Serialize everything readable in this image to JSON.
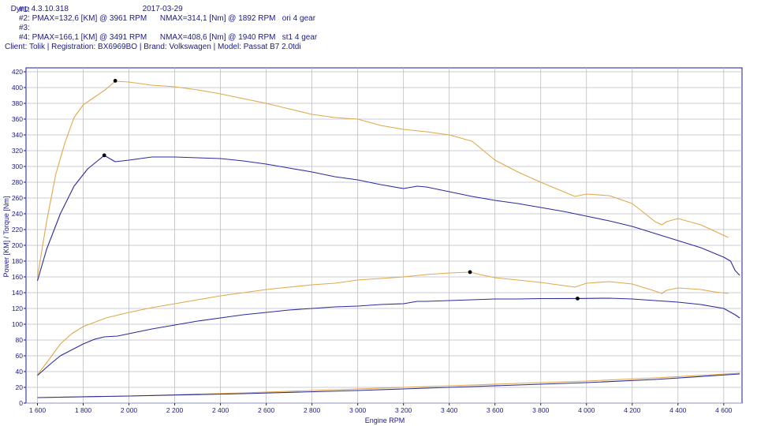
{
  "header": {
    "line0_left": "Dyno 4.3.10.318",
    "line0_right": "2017-03-29",
    "run1": "#1:",
    "run2": "#2: PMAX=132,6 [KM] @ 3961 RPM      NMAX=314,1 [Nm] @ 1892 RPM   ori 4 gear",
    "run3": "#3:",
    "run4": "#4: PMAX=166,1 [KM] @ 3491 RPM      NMAX=408,6 [Nm] @ 1940 RPM   st1 4 gear",
    "client": "Client: Tolik | Registration: BX6969BO | Brand: Volkswagen | Model: Passat B7 2.0tdi"
  },
  "chart_data": {
    "type": "line",
    "xlabel": "Engine RPM",
    "ylabel": "Power [KM] / Torque [Nm]",
    "xlim": [
      1550,
      4680
    ],
    "ylim": [
      0,
      425
    ],
    "xticks": [
      1600,
      1800,
      2000,
      2200,
      2400,
      2600,
      2800,
      3000,
      3200,
      3400,
      3600,
      3800,
      4000,
      4200,
      4400,
      4600
    ],
    "xtick_labels": [
      "1 600",
      "1 800",
      "2 000",
      "2 200",
      "2 400",
      "2 600",
      "2 800",
      "3 000",
      "3 200",
      "3 400",
      "3 600",
      "3 800",
      "4 000",
      "4 200",
      "4 400",
      "4 600"
    ],
    "yticks": [
      0,
      20,
      40,
      60,
      80,
      100,
      120,
      140,
      160,
      180,
      200,
      220,
      240,
      260,
      280,
      300,
      320,
      340,
      360,
      380,
      400,
      420
    ],
    "grid": true,
    "colors": {
      "ori": "#2a2a9e",
      "st1": "#e0a84a",
      "marker": "#000000"
    },
    "series": [
      {
        "color_key": "st1",
        "values": [
          [
            1600,
            160
          ],
          [
            1640,
            230
          ],
          [
            1680,
            290
          ],
          [
            1720,
            330
          ],
          [
            1760,
            362
          ],
          [
            1800,
            378
          ],
          [
            1850,
            388
          ],
          [
            1900,
            398
          ],
          [
            1940,
            408
          ],
          [
            2000,
            407
          ],
          [
            2100,
            403
          ],
          [
            2200,
            401
          ],
          [
            2300,
            397
          ],
          [
            2400,
            392
          ],
          [
            2500,
            386
          ],
          [
            2600,
            380
          ],
          [
            2700,
            373
          ],
          [
            2800,
            366
          ],
          [
            2900,
            362
          ],
          [
            3000,
            360
          ],
          [
            3100,
            352
          ],
          [
            3200,
            347
          ],
          [
            3300,
            344
          ],
          [
            3400,
            340
          ],
          [
            3500,
            332
          ],
          [
            3550,
            320
          ],
          [
            3600,
            308
          ],
          [
            3700,
            293
          ],
          [
            3800,
            280
          ],
          [
            3900,
            268
          ],
          [
            3950,
            262
          ],
          [
            4000,
            265
          ],
          [
            4100,
            263
          ],
          [
            4200,
            253
          ],
          [
            4300,
            230
          ],
          [
            4330,
            226
          ],
          [
            4350,
            230
          ],
          [
            4400,
            234
          ],
          [
            4500,
            226
          ],
          [
            4560,
            218
          ],
          [
            4620,
            210
          ]
        ]
      },
      {
        "color_key": "ori",
        "values": [
          [
            1600,
            155
          ],
          [
            1640,
            195
          ],
          [
            1700,
            240
          ],
          [
            1760,
            275
          ],
          [
            1820,
            297
          ],
          [
            1892,
            314
          ],
          [
            1940,
            306
          ],
          [
            2000,
            308
          ],
          [
            2100,
            312
          ],
          [
            2200,
            312
          ],
          [
            2300,
            311
          ],
          [
            2400,
            310
          ],
          [
            2500,
            307
          ],
          [
            2600,
            303
          ],
          [
            2700,
            298
          ],
          [
            2800,
            293
          ],
          [
            2900,
            287
          ],
          [
            3000,
            283
          ],
          [
            3100,
            277
          ],
          [
            3200,
            272
          ],
          [
            3260,
            275
          ],
          [
            3300,
            274
          ],
          [
            3400,
            268
          ],
          [
            3500,
            262
          ],
          [
            3600,
            257
          ],
          [
            3700,
            253
          ],
          [
            3800,
            248
          ],
          [
            3900,
            243
          ],
          [
            4000,
            237
          ],
          [
            4100,
            231
          ],
          [
            4200,
            224
          ],
          [
            4300,
            215
          ],
          [
            4400,
            206
          ],
          [
            4500,
            197
          ],
          [
            4600,
            185
          ],
          [
            4630,
            180
          ],
          [
            4650,
            168
          ],
          [
            4670,
            162
          ]
        ]
      },
      {
        "color_key": "st1",
        "values": [
          [
            1600,
            36
          ],
          [
            1650,
            55
          ],
          [
            1700,
            75
          ],
          [
            1750,
            88
          ],
          [
            1800,
            97
          ],
          [
            1900,
            108
          ],
          [
            2000,
            115
          ],
          [
            2100,
            121
          ],
          [
            2200,
            126
          ],
          [
            2300,
            131
          ],
          [
            2400,
            136
          ],
          [
            2500,
            140
          ],
          [
            2600,
            144
          ],
          [
            2700,
            147
          ],
          [
            2800,
            150
          ],
          [
            2900,
            152
          ],
          [
            3000,
            156
          ],
          [
            3100,
            158
          ],
          [
            3200,
            160
          ],
          [
            3300,
            163
          ],
          [
            3400,
            165
          ],
          [
            3491,
            166
          ],
          [
            3550,
            162
          ],
          [
            3600,
            159
          ],
          [
            3700,
            156
          ],
          [
            3800,
            153
          ],
          [
            3900,
            149
          ],
          [
            3950,
            147
          ],
          [
            4000,
            152
          ],
          [
            4100,
            154
          ],
          [
            4200,
            151
          ],
          [
            4300,
            142
          ],
          [
            4330,
            139
          ],
          [
            4350,
            143
          ],
          [
            4400,
            146
          ],
          [
            4500,
            144
          ],
          [
            4560,
            141
          ],
          [
            4620,
            139
          ]
        ]
      },
      {
        "color_key": "ori",
        "values": [
          [
            1600,
            35
          ],
          [
            1650,
            48
          ],
          [
            1700,
            60
          ],
          [
            1800,
            75
          ],
          [
            1850,
            81
          ],
          [
            1892,
            84
          ],
          [
            1950,
            85
          ],
          [
            2000,
            88
          ],
          [
            2100,
            94
          ],
          [
            2200,
            99
          ],
          [
            2300,
            104
          ],
          [
            2400,
            108
          ],
          [
            2500,
            112
          ],
          [
            2600,
            115
          ],
          [
            2700,
            118
          ],
          [
            2800,
            120
          ],
          [
            2900,
            122
          ],
          [
            3000,
            123
          ],
          [
            3100,
            125
          ],
          [
            3200,
            126
          ],
          [
            3260,
            129
          ],
          [
            3300,
            129
          ],
          [
            3400,
            130
          ],
          [
            3500,
            131
          ],
          [
            3600,
            132
          ],
          [
            3700,
            132
          ],
          [
            3800,
            132.5
          ],
          [
            3961,
            132.6
          ],
          [
            4100,
            133
          ],
          [
            4200,
            132
          ],
          [
            4300,
            130
          ],
          [
            4400,
            128
          ],
          [
            4500,
            125
          ],
          [
            4600,
            120
          ],
          [
            4650,
            112
          ],
          [
            4670,
            108
          ]
        ]
      },
      {
        "color_key": "st1",
        "values": [
          [
            1600,
            7
          ],
          [
            2000,
            9
          ],
          [
            2500,
            13
          ],
          [
            3000,
            18
          ],
          [
            3500,
            23
          ],
          [
            4000,
            28
          ],
          [
            4300,
            32
          ],
          [
            4670,
            38
          ]
        ]
      },
      {
        "color_key": "ori",
        "values": [
          [
            1600,
            7
          ],
          [
            2000,
            9
          ],
          [
            2500,
            12
          ],
          [
            3000,
            16
          ],
          [
            3500,
            21
          ],
          [
            4000,
            26
          ],
          [
            4300,
            30
          ],
          [
            4670,
            37
          ]
        ]
      }
    ],
    "markers": [
      {
        "x": 1940,
        "y": 408.6
      },
      {
        "x": 1892,
        "y": 314.1
      },
      {
        "x": 3491,
        "y": 166.1
      },
      {
        "x": 3961,
        "y": 132.6
      }
    ]
  }
}
